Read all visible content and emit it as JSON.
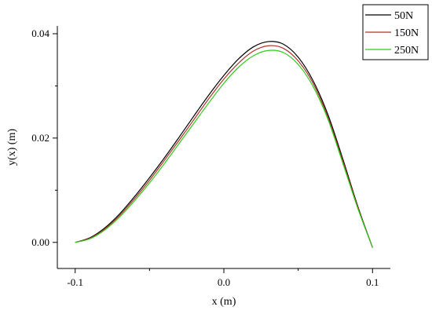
{
  "chart_data": {
    "type": "line",
    "title": "",
    "xlabel": "x (m)",
    "ylabel": "y(x) (m)",
    "xlim": [
      -0.112,
      0.112
    ],
    "ylim": [
      -0.005,
      0.0415
    ],
    "xticks": [
      -0.1,
      0.0,
      0.1
    ],
    "xtick_labels": [
      "-0.1",
      "0.0",
      "0.1"
    ],
    "yticks": [
      0.0,
      0.02,
      0.04
    ],
    "ytick_labels": [
      "0.00",
      "0.02",
      "0.04"
    ],
    "grid": false,
    "legend_position": "top-right",
    "x": [
      -0.1,
      -0.09,
      -0.08,
      -0.07,
      -0.06,
      -0.05,
      -0.04,
      -0.03,
      -0.02,
      -0.01,
      0.0,
      0.01,
      0.02,
      0.03,
      0.04,
      0.05,
      0.06,
      0.07,
      0.08,
      0.09,
      0.1
    ],
    "series": [
      {
        "name": "50N",
        "color": "#000000",
        "values": [
          0.0,
          0.0009,
          0.0028,
          0.0055,
          0.0088,
          0.0124,
          0.0162,
          0.0202,
          0.0243,
          0.0283,
          0.032,
          0.0352,
          0.0375,
          0.0385,
          0.038,
          0.0355,
          0.031,
          0.0245,
          0.016,
          0.007,
          -0.001
        ]
      },
      {
        "name": "150N",
        "color": "#b0302a",
        "values": [
          0.0,
          0.0008,
          0.0026,
          0.0052,
          0.0084,
          0.0119,
          0.0157,
          0.0196,
          0.0236,
          0.0276,
          0.0313,
          0.0344,
          0.0367,
          0.0377,
          0.0372,
          0.0348,
          0.0305,
          0.024,
          0.0156,
          0.0068,
          -0.001
        ]
      },
      {
        "name": "250N",
        "color": "#2ecc1a",
        "values": [
          0.0,
          0.0007,
          0.0024,
          0.0049,
          0.008,
          0.0114,
          0.0151,
          0.019,
          0.0229,
          0.0268,
          0.0305,
          0.0336,
          0.0358,
          0.0368,
          0.0364,
          0.0341,
          0.0299,
          0.0236,
          0.0152,
          0.0066,
          -0.001
        ]
      }
    ]
  }
}
